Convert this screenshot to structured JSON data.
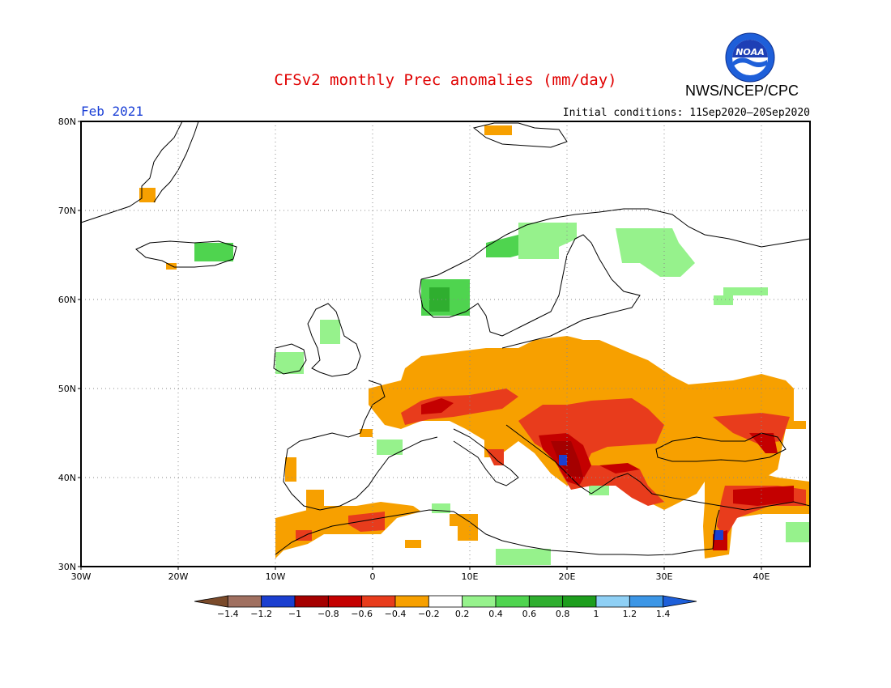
{
  "title": "CFSv2 monthly Prec anomalies (mm/day)",
  "agency": "NWS/NCEP/CPC",
  "logo_text": "NOAA",
  "month": "Feb 2021",
  "initial_conditions": "Initial conditions: 11Sep2020–20Sep2020",
  "lat_labels": [
    "80N",
    "70N",
    "60N",
    "50N",
    "40N",
    "30N"
  ],
  "lon_labels": [
    "30W",
    "20W",
    "10W",
    "0",
    "10E",
    "20E",
    "30E",
    "40E"
  ],
  "colorbar": {
    "labels": [
      "−1.4",
      "−1.2",
      "−1",
      "−0.8",
      "−0.6",
      "−0.4",
      "−0.2",
      "0.2",
      "0.4",
      "0.6",
      "0.8",
      "1",
      "1.2",
      "1.4"
    ],
    "colors": [
      "#7a4a2a",
      "#a07060",
      "#1b3fd0",
      "#a50000",
      "#c40000",
      "#e83c1c",
      "#f7a000",
      "#ffffff",
      "#96f28c",
      "#4fd44f",
      "#2fae2f",
      "#1e9e1e",
      "#8fd0f5",
      "#3c96e6",
      "#1e5fd9"
    ]
  },
  "anomaly_colors": {
    "orange": "#f7a000",
    "red_orange": "#e83c1c",
    "red": "#c40000",
    "dark_red": "#a50000",
    "blue": "#1b3fd0",
    "light_green": "#96f28c",
    "green": "#4fd44f",
    "dark_green": "#2fae2f"
  }
}
